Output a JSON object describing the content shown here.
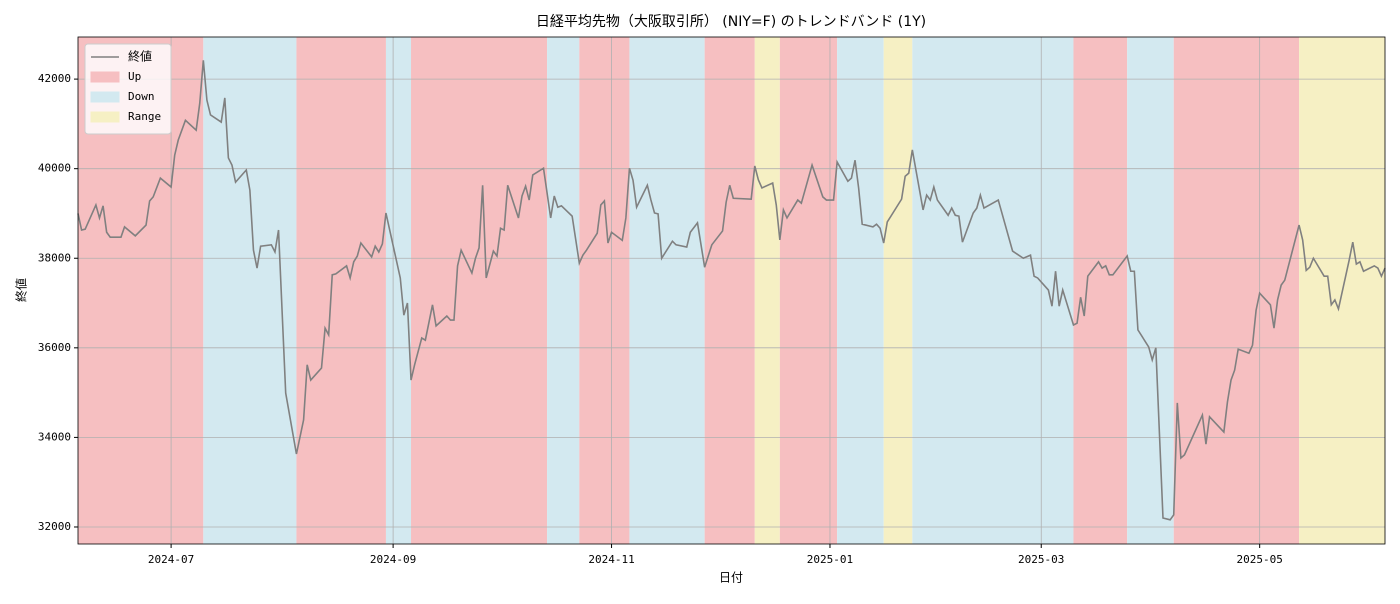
{
  "chart_data": {
    "type": "line",
    "title": "日経平均先物（大阪取引所） (NIY=F) のトレンドバンド (1Y)",
    "xlabel": "日付",
    "ylabel": "終値",
    "xlim": [
      "2024-06-05",
      "2025-06-05"
    ],
    "xticks": [
      {
        "value": "2024-07-01",
        "label": "2024-07"
      },
      {
        "value": "2024-09-01",
        "label": "2024-09"
      },
      {
        "value": "2024-11-01",
        "label": "2024-11"
      },
      {
        "value": "2025-01-01",
        "label": "2025-01"
      },
      {
        "value": "2025-03-01",
        "label": "2025-03"
      },
      {
        "value": "2025-05-01",
        "label": "2025-05"
      }
    ],
    "ylim": [
      31620,
      42940
    ],
    "yticks": [
      32000,
      34000,
      36000,
      38000,
      40000,
      42000
    ],
    "grid": true,
    "legend": "upper left",
    "band_types": [
      {
        "name": "Up",
        "color": "#f6bfc1"
      },
      {
        "name": "Down",
        "color": "#d3e9f0"
      },
      {
        "name": "Range",
        "color": "#f6f0c4"
      }
    ],
    "bands": [
      {
        "start": "2024-06-05",
        "end": "2024-07-10",
        "trend": "Up"
      },
      {
        "start": "2024-07-10",
        "end": "2024-08-05",
        "trend": "Down"
      },
      {
        "start": "2024-08-05",
        "end": "2024-08-30",
        "trend": "Up"
      },
      {
        "start": "2024-08-30",
        "end": "2024-09-06",
        "trend": "Down"
      },
      {
        "start": "2024-09-06",
        "end": "2024-10-14",
        "trend": "Up"
      },
      {
        "start": "2024-10-14",
        "end": "2024-10-23",
        "trend": "Down"
      },
      {
        "start": "2024-10-23",
        "end": "2024-11-06",
        "trend": "Up"
      },
      {
        "start": "2024-11-06",
        "end": "2024-11-27",
        "trend": "Down"
      },
      {
        "start": "2024-11-27",
        "end": "2024-12-11",
        "trend": "Up"
      },
      {
        "start": "2024-12-11",
        "end": "2024-12-18",
        "trend": "Range"
      },
      {
        "start": "2024-12-18",
        "end": "2025-01-03",
        "trend": "Up"
      },
      {
        "start": "2025-01-03",
        "end": "2025-01-16",
        "trend": "Down"
      },
      {
        "start": "2025-01-16",
        "end": "2025-01-24",
        "trend": "Range"
      },
      {
        "start": "2025-01-24",
        "end": "2025-03-10",
        "trend": "Down"
      },
      {
        "start": "2025-03-10",
        "end": "2025-03-25",
        "trend": "Up"
      },
      {
        "start": "2025-03-25",
        "end": "2025-04-07",
        "trend": "Down"
      },
      {
        "start": "2025-04-07",
        "end": "2025-05-12",
        "trend": "Up"
      },
      {
        "start": "2025-05-12",
        "end": "2025-06-05",
        "trend": "Range"
      }
    ],
    "x": [
      "2024-06-05",
      "2024-06-06",
      "2024-06-07",
      "2024-06-10",
      "2024-06-11",
      "2024-06-12",
      "2024-06-13",
      "2024-06-14",
      "2024-06-17",
      "2024-06-18",
      "2024-06-21",
      "2024-06-24",
      "2024-06-25",
      "2024-06-26",
      "2024-06-28",
      "2024-07-01",
      "2024-07-02",
      "2024-07-03",
      "2024-07-05",
      "2024-07-08",
      "2024-07-09",
      "2024-07-10",
      "2024-07-11",
      "2024-07-12",
      "2024-07-15",
      "2024-07-16",
      "2024-07-17",
      "2024-07-18",
      "2024-07-19",
      "2024-07-22",
      "2024-07-23",
      "2024-07-24",
      "2024-07-25",
      "2024-07-26",
      "2024-07-29",
      "2024-07-30",
      "2024-07-31",
      "2024-08-02",
      "2024-08-05",
      "2024-08-07",
      "2024-08-08",
      "2024-08-09",
      "2024-08-12",
      "2024-08-13",
      "2024-08-14",
      "2024-08-15",
      "2024-08-16",
      "2024-08-19",
      "2024-08-20",
      "2024-08-21",
      "2024-08-22",
      "2024-08-23",
      "2024-08-26",
      "2024-08-27",
      "2024-08-28",
      "2024-08-29",
      "2024-08-30",
      "2024-09-03",
      "2024-09-04",
      "2024-09-05",
      "2024-09-06",
      "2024-09-07",
      "2024-09-09",
      "2024-09-10",
      "2024-09-12",
      "2024-09-13",
      "2024-09-16",
      "2024-09-17",
      "2024-09-18",
      "2024-09-19",
      "2024-09-20",
      "2024-09-23",
      "2024-09-24",
      "2024-09-25",
      "2024-09-26",
      "2024-09-27",
      "2024-09-29",
      "2024-09-30",
      "2024-10-01",
      "2024-10-02",
      "2024-10-03",
      "2024-10-06",
      "2024-10-07",
      "2024-10-08",
      "2024-10-09",
      "2024-10-10",
      "2024-10-13",
      "2024-10-15",
      "2024-10-16",
      "2024-10-17",
      "2024-10-18",
      "2024-10-21",
      "2024-10-23",
      "2024-10-24",
      "2024-10-25",
      "2024-10-28",
      "2024-10-29",
      "2024-10-30",
      "2024-10-31",
      "2024-11-01",
      "2024-11-04",
      "2024-11-05",
      "2024-11-06",
      "2024-11-07",
      "2024-11-08",
      "2024-11-11",
      "2024-11-12",
      "2024-11-13",
      "2024-11-14",
      "2024-11-15",
      "2024-11-18",
      "2024-11-19",
      "2024-11-22",
      "2024-11-23",
      "2024-11-25",
      "2024-11-27",
      "2024-11-29",
      "2024-12-02",
      "2024-12-03",
      "2024-12-04",
      "2024-12-05",
      "2024-12-10",
      "2024-12-11",
      "2024-12-12",
      "2024-12-13",
      "2024-12-16",
      "2024-12-17",
      "2024-12-18",
      "2024-12-19",
      "2024-12-20",
      "2024-12-23",
      "2024-12-24",
      "2024-12-27",
      "2024-12-30",
      "2024-12-31",
      "2025-01-02",
      "2025-01-03",
      "2025-01-06",
      "2025-01-07",
      "2025-01-08",
      "2025-01-09",
      "2025-01-10",
      "2025-01-13",
      "2025-01-14",
      "2025-01-15",
      "2025-01-16",
      "2025-01-17",
      "2025-01-21",
      "2025-01-22",
      "2025-01-23",
      "2025-01-24",
      "2025-01-27",
      "2025-01-28",
      "2025-01-29",
      "2025-01-30",
      "2025-01-31",
      "2025-02-03",
      "2025-02-04",
      "2025-02-05",
      "2025-02-06",
      "2025-02-07",
      "2025-02-10",
      "2025-02-11",
      "2025-02-12",
      "2025-02-13",
      "2025-02-17",
      "2025-02-21",
      "2025-02-24",
      "2025-02-26",
      "2025-02-27",
      "2025-02-28",
      "2025-03-03",
      "2025-03-04",
      "2025-03-05",
      "2025-03-06",
      "2025-03-07",
      "2025-03-10",
      "2025-03-11",
      "2025-03-12",
      "2025-03-13",
      "2025-03-14",
      "2025-03-17",
      "2025-03-18",
      "2025-03-19",
      "2025-03-20",
      "2025-03-21",
      "2025-03-25",
      "2025-03-26",
      "2025-03-27",
      "2025-03-28",
      "2025-03-31",
      "2025-04-01",
      "2025-04-02",
      "2025-04-04",
      "2025-04-06",
      "2025-04-07",
      "2025-04-08",
      "2025-04-09",
      "2025-04-10",
      "2025-04-15",
      "2025-04-16",
      "2025-04-17",
      "2025-04-21",
      "2025-04-22",
      "2025-04-23",
      "2025-04-24",
      "2025-04-25",
      "2025-04-28",
      "2025-04-29",
      "2025-04-30",
      "2025-05-01",
      "2025-05-04",
      "2025-05-05",
      "2025-05-06",
      "2025-05-07",
      "2025-05-08",
      "2025-05-12",
      "2025-05-13",
      "2025-05-14",
      "2025-05-15",
      "2025-05-16",
      "2025-05-19",
      "2025-05-20",
      "2025-05-21",
      "2025-05-22",
      "2025-05-23",
      "2025-05-26",
      "2025-05-27",
      "2025-05-28",
      "2025-05-29",
      "2025-05-30",
      "2025-06-02",
      "2025-06-03",
      "2025-06-04",
      "2025-06-05"
    ],
    "series": [
      {
        "name": "終値",
        "color": "#808080",
        "values": [
          39000,
          38630,
          38650,
          39190,
          38900,
          39170,
          38580,
          38470,
          38470,
          38700,
          38500,
          38740,
          39280,
          39370,
          39790,
          39590,
          40300,
          40640,
          41080,
          40860,
          41460,
          42420,
          41530,
          41200,
          41040,
          41580,
          40240,
          40080,
          39700,
          39970,
          39520,
          38180,
          37780,
          38270,
          38300,
          38140,
          38630,
          34990,
          33630,
          34390,
          35620,
          35280,
          35550,
          36440,
          36290,
          37630,
          37650,
          37830,
          37560,
          37920,
          38050,
          38340,
          38030,
          38270,
          38140,
          38320,
          39010,
          37560,
          36730,
          37000,
          35280,
          35620,
          36220,
          36170,
          36960,
          36490,
          36710,
          36620,
          36620,
          37830,
          38180,
          37670,
          38000,
          38230,
          39630,
          37560,
          38160,
          38050,
          38670,
          38630,
          39630,
          38900,
          39390,
          39610,
          39300,
          39860,
          40010,
          38900,
          39390,
          39140,
          39170,
          38940,
          37890,
          38070,
          38180,
          38560,
          39190,
          39280,
          38340,
          38580,
          38400,
          38900,
          40010,
          39740,
          39140,
          39630,
          39300,
          39010,
          38990,
          38000,
          38380,
          38300,
          38250,
          38580,
          38790,
          37800,
          38300,
          38610,
          39250,
          39630,
          39340,
          39320,
          40060,
          39750,
          39570,
          39680,
          39190,
          38410,
          39080,
          38900,
          39300,
          39230,
          40080,
          39370,
          39300,
          39300,
          40150,
          39720,
          39790,
          40190,
          39570,
          38760,
          38700,
          38760,
          38670,
          38340,
          38810,
          39320,
          39830,
          39900,
          40420,
          39080,
          39410,
          39300,
          39590,
          39300,
          38960,
          39120,
          38960,
          38940,
          38360,
          39010,
          39120,
          39410,
          39120,
          39300,
          38160,
          38000,
          38070,
          37600,
          37560,
          37290,
          36930,
          37710,
          36930,
          37290,
          36510,
          36550,
          37130,
          36710,
          37600,
          37920,
          37780,
          37830,
          37630,
          37630,
          38050,
          37710,
          37710,
          36400,
          36020,
          35730,
          36000,
          32200,
          32160,
          32270,
          34770,
          33540,
          33610,
          34500,
          33850,
          34460,
          34120,
          34790,
          35280,
          35500,
          35970,
          35880,
          36060,
          36840,
          37220,
          36960,
          36440,
          37070,
          37400,
          37510,
          38740,
          38410,
          37730,
          37800,
          38000,
          37600,
          37600,
          36960,
          37070,
          36870,
          37960,
          38360,
          37870,
          37920,
          37710,
          37830,
          37780,
          37600,
          37780
        ]
      }
    ]
  }
}
